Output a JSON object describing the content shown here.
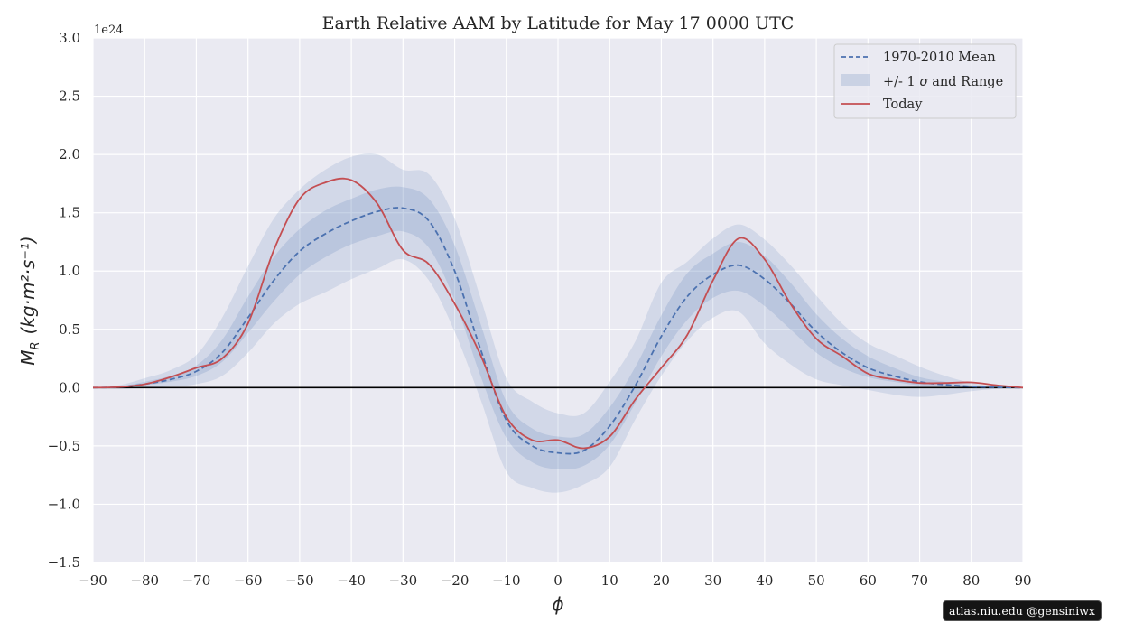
{
  "chart_data": {
    "type": "area",
    "title": "Earth Relative AAM by Latitude for May 17 0000 UTC",
    "xlabel": "ϕ",
    "ylabel_main": "M",
    "ylabel_sub": "R",
    "ylabel_units": "(kg·m²·s⁻¹)",
    "scale_label": "1e24",
    "xlim": [
      -90,
      90
    ],
    "ylim": [
      -1.5,
      3.0
    ],
    "xticks": [
      -90,
      -80,
      -70,
      -60,
      -50,
      -40,
      -30,
      -20,
      -10,
      0,
      10,
      20,
      30,
      40,
      50,
      60,
      70,
      80,
      90
    ],
    "xtick_labels": [
      "−90",
      "−80",
      "−70",
      "−60",
      "−50",
      "−40",
      "−30",
      "−20",
      "−10",
      "0",
      "10",
      "20",
      "30",
      "40",
      "50",
      "60",
      "70",
      "80",
      "90"
    ],
    "yticks": [
      -1.5,
      -1.0,
      -0.5,
      0.0,
      0.5,
      1.0,
      1.5,
      2.0,
      2.5,
      3.0
    ],
    "ytick_labels": [
      "−1.5",
      "−1.0",
      "−0.5",
      "0.0",
      "0.5",
      "1.0",
      "1.5",
      "2.0",
      "2.5",
      "3.0"
    ],
    "grid": true,
    "legend_position": "top-right",
    "legend": {
      "mean_label": "1970-2010 Mean",
      "band_label_prefix": "+/- 1",
      "band_label_sigma": "σ",
      "band_label_suffix": "and Range",
      "today_label": "Today"
    },
    "x": [
      -90,
      -85,
      -80,
      -75,
      -70,
      -65,
      -60,
      -55,
      -50,
      -45,
      -40,
      -35,
      -30,
      -25,
      -20,
      -15,
      -10,
      -5,
      0,
      5,
      10,
      15,
      20,
      25,
      30,
      35,
      40,
      45,
      50,
      55,
      60,
      65,
      70,
      75,
      80,
      85,
      90
    ],
    "series": [
      {
        "name": "1970-2010 Mean",
        "values": [
          0.0,
          0.005,
          0.03,
          0.07,
          0.14,
          0.3,
          0.6,
          0.92,
          1.17,
          1.32,
          1.43,
          1.51,
          1.54,
          1.43,
          1.0,
          0.33,
          -0.28,
          -0.5,
          -0.56,
          -0.54,
          -0.33,
          0.02,
          0.44,
          0.78,
          0.97,
          1.05,
          0.93,
          0.72,
          0.48,
          0.3,
          0.17,
          0.1,
          0.05,
          0.025,
          0.01,
          0.003,
          0.0
        ]
      },
      {
        "name": "Today",
        "values": [
          0.0,
          0.005,
          0.03,
          0.09,
          0.17,
          0.25,
          0.55,
          1.18,
          1.62,
          1.76,
          1.78,
          1.58,
          1.18,
          1.06,
          0.72,
          0.28,
          -0.25,
          -0.45,
          -0.45,
          -0.52,
          -0.42,
          -0.1,
          0.17,
          0.45,
          0.92,
          1.28,
          1.1,
          0.72,
          0.42,
          0.27,
          0.12,
          0.07,
          0.04,
          0.04,
          0.045,
          0.02,
          0.0
        ]
      }
    ],
    "band_sigma": {
      "lower": [
        0.0,
        0.0,
        0.02,
        0.05,
        0.1,
        0.22,
        0.47,
        0.74,
        0.97,
        1.12,
        1.23,
        1.3,
        1.34,
        1.2,
        0.75,
        0.1,
        -0.43,
        -0.64,
        -0.7,
        -0.67,
        -0.49,
        -0.13,
        0.27,
        0.58,
        0.77,
        0.83,
        0.7,
        0.5,
        0.3,
        0.17,
        0.09,
        0.05,
        0.02,
        0.01,
        0.003,
        0.0,
        0.0
      ],
      "upper": [
        0.0,
        0.01,
        0.05,
        0.1,
        0.19,
        0.41,
        0.78,
        1.12,
        1.36,
        1.52,
        1.62,
        1.7,
        1.72,
        1.62,
        1.22,
        0.55,
        -0.12,
        -0.35,
        -0.42,
        -0.4,
        -0.17,
        0.18,
        0.62,
        0.98,
        1.15,
        1.25,
        1.13,
        0.9,
        0.63,
        0.42,
        0.27,
        0.17,
        0.09,
        0.05,
        0.02,
        0.006,
        0.0
      ]
    },
    "band_range": {
      "lower": [
        0.0,
        -0.01,
        0.0,
        0.01,
        0.03,
        0.1,
        0.3,
        0.55,
        0.72,
        0.82,
        0.93,
        1.02,
        1.1,
        0.92,
        0.48,
        -0.1,
        -0.72,
        -0.86,
        -0.9,
        -0.83,
        -0.68,
        -0.27,
        0.1,
        0.4,
        0.6,
        0.65,
        0.38,
        0.2,
        0.07,
        0.02,
        -0.02,
        -0.06,
        -0.08,
        -0.06,
        -0.03,
        -0.01,
        0.0
      ],
      "upper": [
        0.0,
        0.02,
        0.08,
        0.15,
        0.28,
        0.6,
        1.04,
        1.45,
        1.7,
        1.87,
        1.98,
        2.0,
        1.87,
        1.83,
        1.45,
        0.77,
        0.08,
        -0.12,
        -0.22,
        -0.22,
        0.05,
        0.4,
        0.9,
        1.08,
        1.28,
        1.4,
        1.27,
        1.05,
        0.79,
        0.55,
        0.38,
        0.28,
        0.18,
        0.1,
        0.04,
        0.01,
        0.0
      ]
    },
    "colors": {
      "background": "#eaeaf2",
      "grid": "#ffffff",
      "mean": "#4c72b0",
      "band": "#4c72b0",
      "today": "#c44e52",
      "zero_line": "#000000"
    }
  },
  "watermark": "atlas.niu.edu  @gensiniwx"
}
